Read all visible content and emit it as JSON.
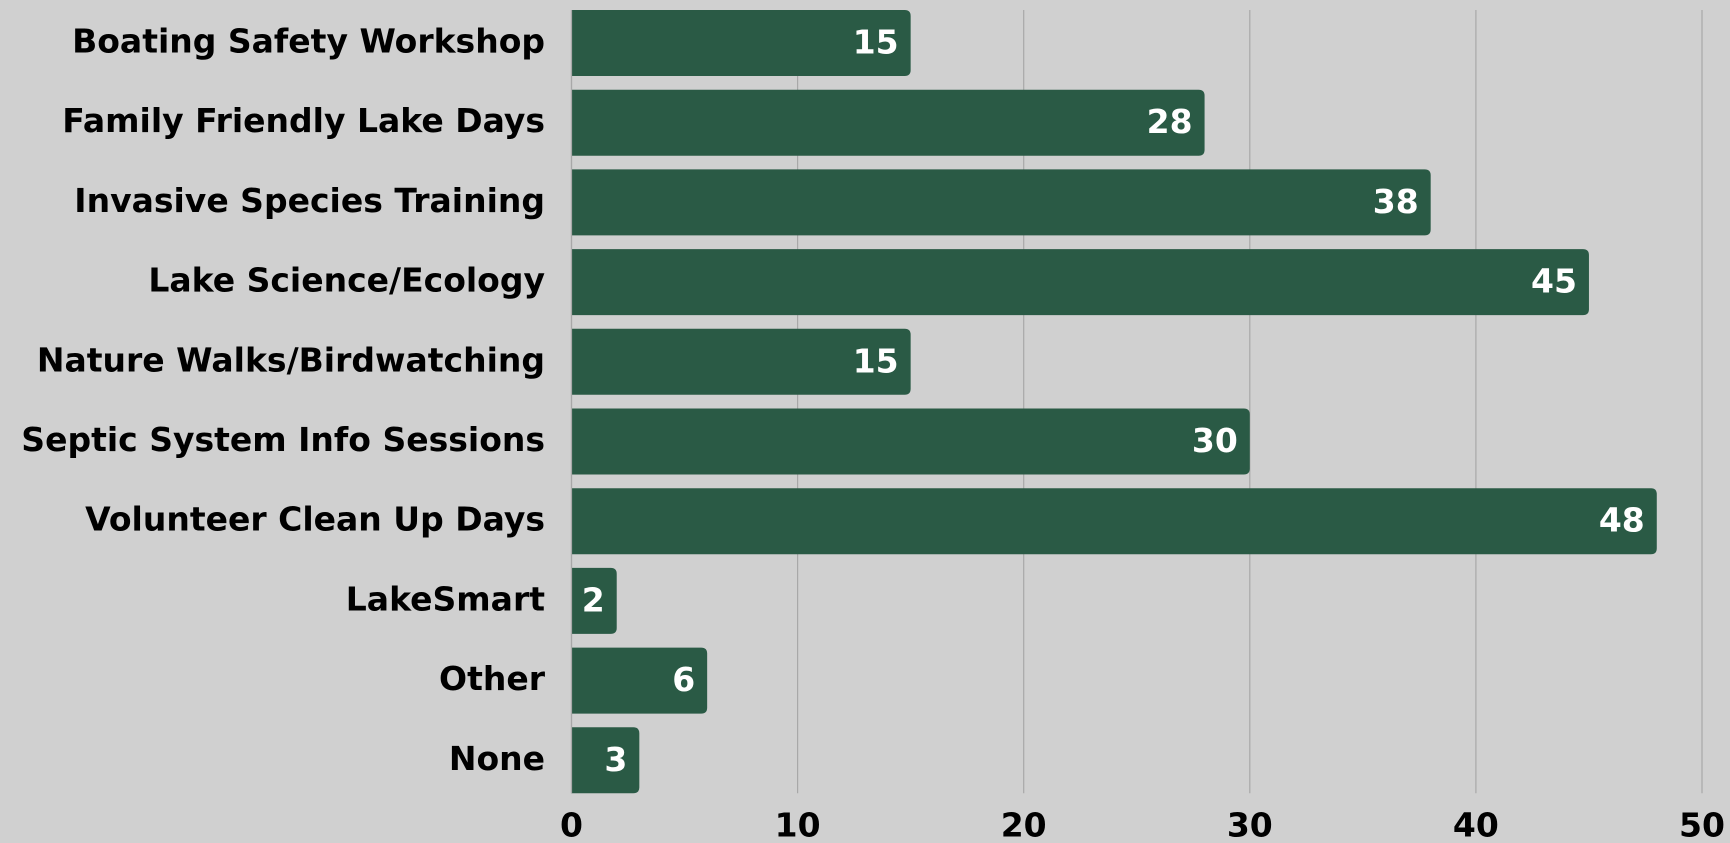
{
  "chart_data": {
    "type": "bar",
    "orientation": "horizontal",
    "categories": [
      "Boating Safety Workshop",
      "Family Friendly Lake Days",
      "Invasive Species Training",
      "Lake Science/Ecology",
      "Nature Walks/Birdwatching",
      "Septic System Info Sessions",
      "Volunteer Clean Up Days",
      "LakeSmart",
      "Other",
      "None"
    ],
    "values": [
      15,
      28,
      38,
      45,
      15,
      30,
      48,
      2,
      6,
      3
    ],
    "color": "#2a5a45",
    "xlim": [
      0,
      50
    ],
    "xticks": [
      0,
      10,
      20,
      30,
      40,
      50
    ],
    "grid": true
  }
}
